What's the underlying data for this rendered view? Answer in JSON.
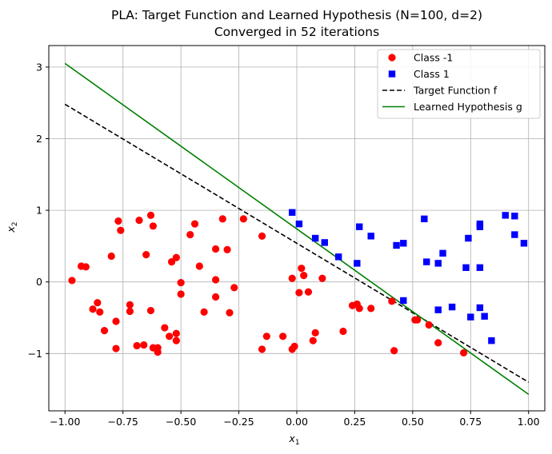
{
  "chart_data": {
    "type": "scatter",
    "title": "PLA: Target Function and Learned Hypothesis (N=100, d=2)",
    "subtitle": "Converged in 52 iterations",
    "xlabel": "x",
    "xlabel_sub": "1",
    "ylabel": "x",
    "ylabel_sub": "2",
    "xlim": [
      -1.07,
      1.07
    ],
    "ylim": [
      -1.8,
      3.3
    ],
    "xticks": [
      -1.0,
      -0.75,
      -0.5,
      -0.25,
      0.0,
      0.25,
      0.5,
      0.75,
      1.0
    ],
    "xtick_labels": [
      "−1.00",
      "−0.75",
      "−0.50",
      "−0.25",
      "0.00",
      "0.25",
      "0.50",
      "0.75",
      "1.00"
    ],
    "yticks": [
      -1,
      0,
      1,
      2,
      3
    ],
    "ytick_labels": [
      "−1",
      "0",
      "1",
      "2",
      "3"
    ],
    "grid": true,
    "legend_position": "top-right",
    "series": [
      {
        "name": "Class -1",
        "kind": "points",
        "marker": "circle",
        "color": "#ff0000",
        "points": [
          [
            -0.97,
            0.02
          ],
          [
            -0.93,
            0.22
          ],
          [
            -0.91,
            0.21
          ],
          [
            -0.88,
            -0.38
          ],
          [
            -0.86,
            -0.29
          ],
          [
            -0.85,
            -0.42
          ],
          [
            -0.83,
            -0.68
          ],
          [
            -0.8,
            0.36
          ],
          [
            -0.78,
            -0.93
          ],
          [
            -0.78,
            -0.55
          ],
          [
            -0.77,
            0.85
          ],
          [
            -0.76,
            0.72
          ],
          [
            -0.72,
            -0.32
          ],
          [
            -0.72,
            -0.41
          ],
          [
            -0.69,
            -0.89
          ],
          [
            -0.68,
            0.86
          ],
          [
            -0.66,
            -0.88
          ],
          [
            -0.65,
            0.38
          ],
          [
            -0.63,
            -0.4
          ],
          [
            -0.63,
            0.93
          ],
          [
            -0.62,
            -0.92
          ],
          [
            -0.62,
            0.78
          ],
          [
            -0.6,
            -0.92
          ],
          [
            -0.6,
            -0.98
          ],
          [
            -0.57,
            -0.64
          ],
          [
            -0.55,
            -0.76
          ],
          [
            -0.54,
            0.28
          ],
          [
            -0.52,
            -0.72
          ],
          [
            -0.52,
            -0.82
          ],
          [
            -0.52,
            0.34
          ],
          [
            -0.5,
            -0.17
          ],
          [
            -0.5,
            -0.01
          ],
          [
            -0.46,
            0.66
          ],
          [
            -0.44,
            0.81
          ],
          [
            -0.42,
            0.22
          ],
          [
            -0.4,
            -0.42
          ],
          [
            -0.35,
            0.03
          ],
          [
            -0.35,
            -0.21
          ],
          [
            -0.35,
            0.46
          ],
          [
            -0.32,
            0.88
          ],
          [
            -0.3,
            0.45
          ],
          [
            -0.29,
            -0.43
          ],
          [
            -0.27,
            -0.08
          ],
          [
            -0.23,
            0.88
          ],
          [
            -0.15,
            0.64
          ],
          [
            -0.15,
            -0.94
          ],
          [
            -0.13,
            -0.76
          ],
          [
            -0.06,
            -0.76
          ],
          [
            -0.02,
            -0.94
          ],
          [
            -0.02,
            0.05
          ],
          [
            -0.01,
            -0.9
          ],
          [
            0.01,
            -0.15
          ],
          [
            0.02,
            0.19
          ],
          [
            0.03,
            0.09
          ],
          [
            0.05,
            -0.14
          ],
          [
            0.07,
            -0.82
          ],
          [
            0.08,
            -0.71
          ],
          [
            0.11,
            0.05
          ],
          [
            0.2,
            -0.69
          ],
          [
            0.24,
            -0.33
          ],
          [
            0.26,
            -0.31
          ],
          [
            0.27,
            -0.37
          ],
          [
            0.32,
            -0.37
          ],
          [
            0.41,
            -0.27
          ],
          [
            0.42,
            -0.96
          ],
          [
            0.51,
            -0.53
          ],
          [
            0.52,
            -0.53
          ],
          [
            0.57,
            -0.6
          ],
          [
            0.61,
            -0.85
          ],
          [
            0.72,
            -0.99
          ]
        ]
      },
      {
        "name": "Class 1",
        "kind": "points",
        "marker": "square",
        "color": "#0000ff",
        "points": [
          [
            -0.02,
            0.97
          ],
          [
            0.01,
            0.81
          ],
          [
            0.08,
            0.61
          ],
          [
            0.12,
            0.55
          ],
          [
            0.18,
            0.35
          ],
          [
            0.26,
            0.26
          ],
          [
            0.27,
            0.77
          ],
          [
            0.32,
            0.64
          ],
          [
            0.43,
            0.51
          ],
          [
            0.46,
            0.54
          ],
          [
            0.46,
            -0.26
          ],
          [
            0.55,
            0.88
          ],
          [
            0.56,
            0.28
          ],
          [
            0.61,
            0.26
          ],
          [
            0.61,
            -0.39
          ],
          [
            0.63,
            0.4
          ],
          [
            0.67,
            -0.35
          ],
          [
            0.73,
            0.2
          ],
          [
            0.74,
            0.61
          ],
          [
            0.75,
            -0.49
          ],
          [
            0.79,
            0.2
          ],
          [
            0.79,
            0.77
          ],
          [
            0.79,
            0.81
          ],
          [
            0.79,
            -0.36
          ],
          [
            0.81,
            -0.48
          ],
          [
            0.84,
            -0.82
          ],
          [
            0.9,
            0.93
          ],
          [
            0.94,
            0.92
          ],
          [
            0.94,
            0.66
          ],
          [
            0.98,
            0.54
          ]
        ]
      },
      {
        "name": "Target Function f",
        "kind": "line",
        "style": "dashed",
        "color": "#000000",
        "x": [
          -1.0,
          1.0
        ],
        "y": [
          2.48,
          -1.4
        ]
      },
      {
        "name": "Learned Hypothesis g",
        "kind": "line",
        "style": "solid",
        "color": "#008000",
        "x": [
          -1.0,
          1.0
        ],
        "y": [
          3.05,
          -1.57
        ]
      }
    ]
  }
}
